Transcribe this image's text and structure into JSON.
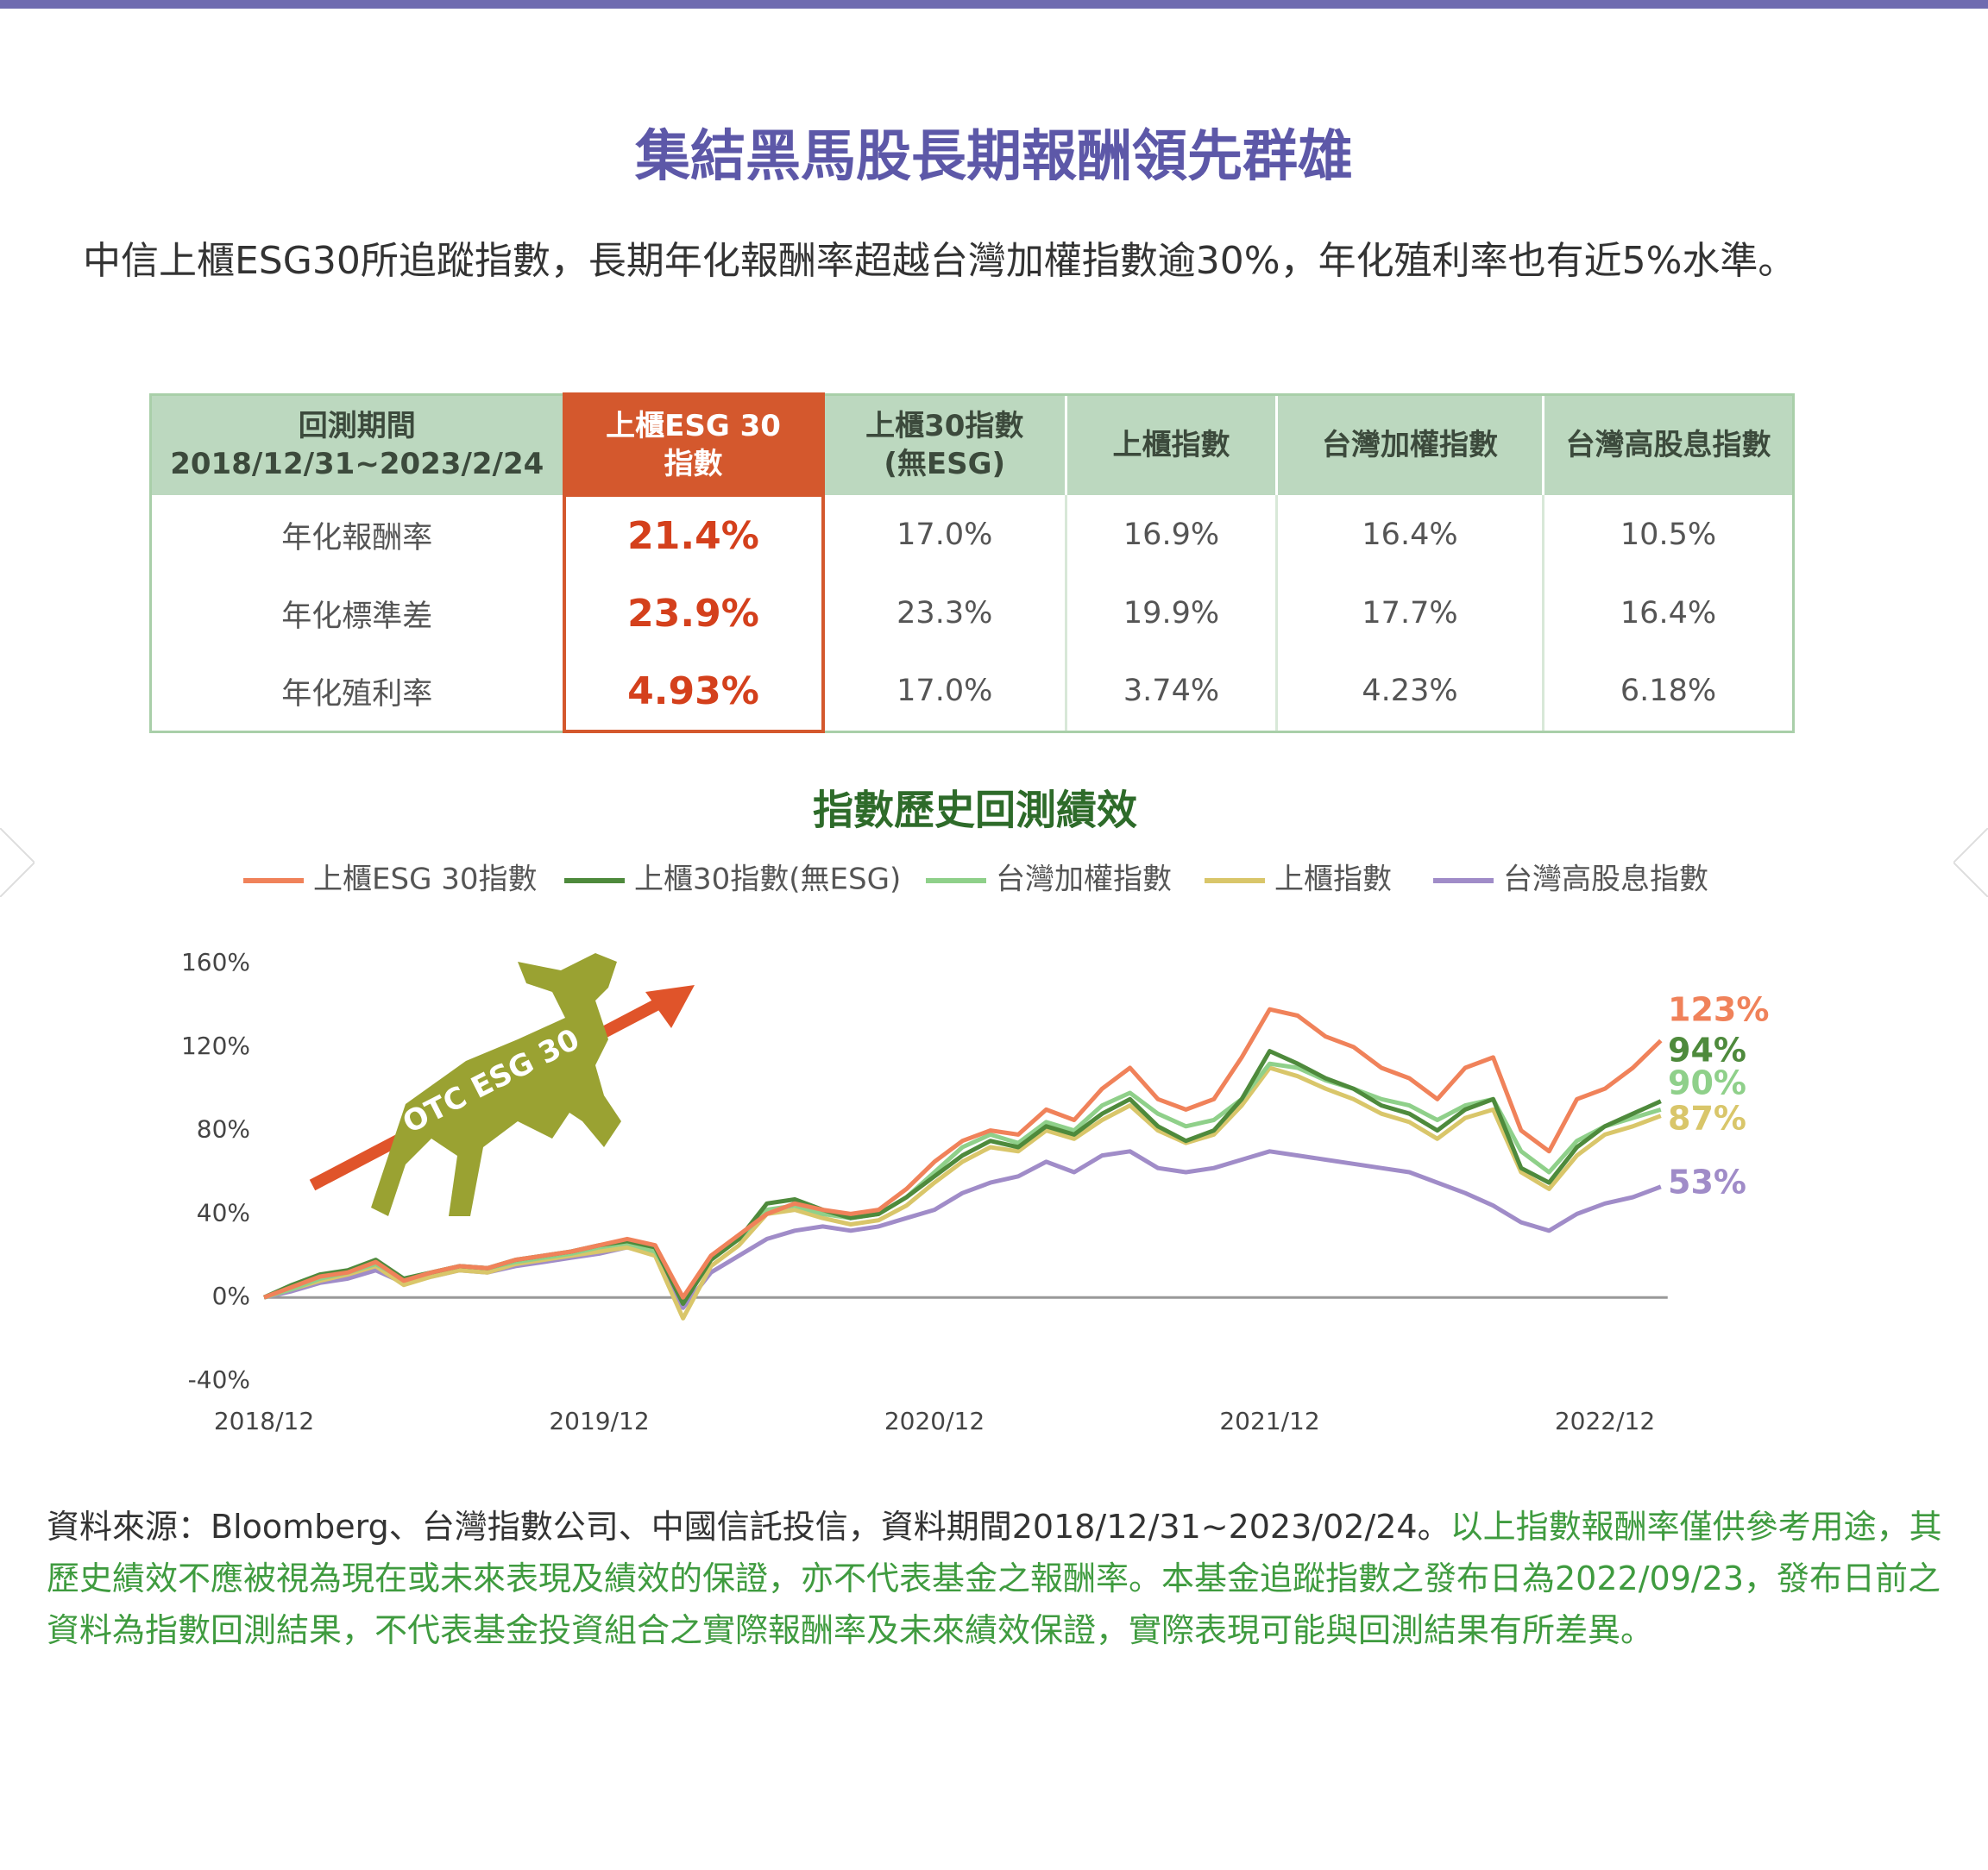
{
  "header": {
    "title": "集結黑馬股長期報酬領先群雄",
    "intro": "中信上櫃ESG30所追蹤指數，長期年化報酬率超越台灣加權指數逾30%，年化殖利率也有近5%水準。"
  },
  "table": {
    "header": [
      "回測期間\n2018/12/31~2023/2/24",
      "上櫃ESG 30\n指數",
      "上櫃30指數\n(無ESG)",
      "上櫃指數",
      "台灣加權指數",
      "台灣高股息指數"
    ],
    "rows": [
      [
        "年化報酬率",
        "21.4%",
        "17.0%",
        "16.9%",
        "16.4%",
        "10.5%"
      ],
      [
        "年化標準差",
        "23.9%",
        "23.3%",
        "19.9%",
        "17.7%",
        "16.4%"
      ],
      [
        "年化殖利率",
        "4.93%",
        "17.0%",
        "3.74%",
        "4.23%",
        "6.18%"
      ]
    ]
  },
  "chart_data": {
    "type": "line",
    "title": "指數歷史回測績效",
    "illustration_label": "OTC ESG 30",
    "x": [
      "2018/12",
      "2019/01",
      "2019/02",
      "2019/03",
      "2019/04",
      "2019/05",
      "2019/06",
      "2019/07",
      "2019/08",
      "2019/09",
      "2019/10",
      "2019/11",
      "2019/12",
      "2020/01",
      "2020/02",
      "2020/03",
      "2020/04",
      "2020/05",
      "2020/06",
      "2020/07",
      "2020/08",
      "2020/09",
      "2020/10",
      "2020/11",
      "2020/12",
      "2021/01",
      "2021/02",
      "2021/03",
      "2021/04",
      "2021/05",
      "2021/06",
      "2021/07",
      "2021/08",
      "2021/09",
      "2021/10",
      "2021/11",
      "2021/12",
      "2022/01",
      "2022/02",
      "2022/03",
      "2022/04",
      "2022/05",
      "2022/06",
      "2022/07",
      "2022/08",
      "2022/09",
      "2022/10",
      "2022/11",
      "2022/12",
      "2023/01",
      "2023/02"
    ],
    "xticks": [
      "2018/12",
      "2019/12",
      "2020/12",
      "2021/12",
      "2022/12"
    ],
    "ylim": [
      -40,
      160
    ],
    "yticks": [
      {
        "value": -40,
        "label": "-40%"
      },
      {
        "value": 0,
        "label": "0%"
      },
      {
        "value": 40,
        "label": "40%"
      },
      {
        "value": 80,
        "label": "80%"
      },
      {
        "value": 120,
        "label": "120%"
      },
      {
        "value": 160,
        "label": "160%"
      }
    ],
    "grid": false,
    "series": [
      {
        "name": "上櫃ESG 30指數",
        "color": "#f0825a",
        "end_label": "123%",
        "values": [
          0,
          5,
          10,
          12,
          17,
          8,
          12,
          15,
          14,
          18,
          20,
          22,
          25,
          28,
          25,
          0,
          20,
          30,
          40,
          45,
          42,
          40,
          42,
          52,
          65,
          75,
          80,
          78,
          90,
          85,
          100,
          110,
          95,
          90,
          95,
          115,
          138,
          135,
          125,
          120,
          110,
          105,
          95,
          110,
          115,
          80,
          70,
          95,
          100,
          110,
          123
        ]
      },
      {
        "name": "上櫃30指數(無ESG)",
        "color": "#4e8a3c",
        "end_label": "94%",
        "values": [
          0,
          6,
          11,
          13,
          18,
          9,
          12,
          15,
          14,
          18,
          20,
          22,
          25,
          27,
          24,
          -3,
          18,
          28,
          45,
          47,
          42,
          38,
          40,
          48,
          58,
          68,
          75,
          72,
          82,
          78,
          88,
          95,
          82,
          75,
          80,
          95,
          118,
          112,
          105,
          100,
          92,
          88,
          80,
          90,
          95,
          62,
          55,
          72,
          82,
          88,
          94
        ]
      },
      {
        "name": "台灣加權指數",
        "color": "#8fd08a",
        "end_label": "90%",
        "values": [
          0,
          4,
          9,
          12,
          16,
          9,
          12,
          15,
          14,
          17,
          19,
          21,
          24,
          26,
          22,
          0,
          18,
          28,
          42,
          44,
          40,
          38,
          40,
          48,
          60,
          72,
          78,
          74,
          84,
          80,
          92,
          98,
          88,
          82,
          85,
          95,
          112,
          110,
          104,
          100,
          95,
          92,
          85,
          92,
          95,
          70,
          60,
          75,
          82,
          86,
          90
        ]
      },
      {
        "name": "上櫃指數",
        "color": "#d9c66a",
        "end_label": "87%",
        "values": [
          0,
          4,
          8,
          11,
          15,
          6,
          10,
          13,
          12,
          16,
          18,
          20,
          22,
          24,
          20,
          -10,
          15,
          25,
          40,
          42,
          38,
          35,
          37,
          44,
          55,
          65,
          72,
          70,
          80,
          76,
          85,
          92,
          80,
          74,
          78,
          92,
          110,
          106,
          100,
          95,
          88,
          84,
          76,
          86,
          90,
          60,
          52,
          68,
          78,
          82,
          87
        ]
      },
      {
        "name": "台灣高股息指數",
        "color": "#a08cc8",
        "end_label": "53%",
        "values": [
          0,
          3,
          7,
          9,
          13,
          7,
          10,
          13,
          12,
          15,
          17,
          19,
          21,
          24,
          21,
          -5,
          12,
          20,
          28,
          32,
          34,
          32,
          34,
          38,
          42,
          50,
          55,
          58,
          65,
          60,
          68,
          70,
          62,
          60,
          62,
          66,
          70,
          68,
          66,
          64,
          62,
          60,
          55,
          50,
          44,
          36,
          32,
          40,
          45,
          48,
          53
        ]
      }
    ]
  },
  "footer": {
    "source": "資料來源：Bloomberg、台灣指數公司、中國信託投信，資料期間2018/12/31~2023/02/24。",
    "disclaimer": "以上指數報酬率僅供參考用途，其歷史績效不應被視為現在或未來表現及績效的保證，亦不代表基金之報酬率。本基金追蹤指數之發布日為2022/09/23，發布日前之資料為指數回測結果，不代表基金投資組合之實際報酬率及未來績效保證，實際表現可能與回測結果有所差異。"
  }
}
